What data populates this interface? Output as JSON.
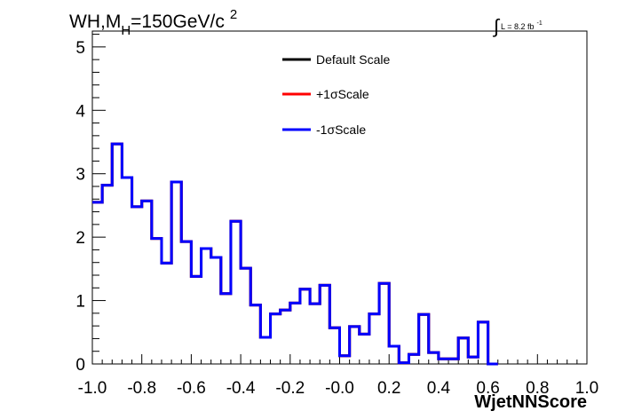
{
  "chart_data": {
    "type": "line",
    "title_parts": [
      "WH,M",
      "H",
      "=150GeV/c",
      "2"
    ],
    "lumi_parts": [
      "∫",
      "L = 8.2 fb",
      "-1"
    ],
    "xlabel": "WjetNNScore",
    "ylabel": "",
    "xlim": [
      -1.0,
      1.0
    ],
    "ylim": [
      0,
      5.25
    ],
    "x_tick_labels": [
      "-1.0",
      "-0.8",
      "-0.6",
      "-0.4",
      "-0.2",
      "-0.0",
      "0.2",
      "0.4",
      "0.6",
      "0.8",
      "1.0"
    ],
    "y_tick_labels": [
      "0",
      "1",
      "2",
      "3",
      "4",
      "5"
    ],
    "x_ticks": [
      -1.0,
      -0.8,
      -0.6,
      -0.4,
      -0.2,
      0.0,
      0.2,
      0.4,
      0.6,
      0.8,
      1.0
    ],
    "y_ticks": [
      0,
      1,
      2,
      3,
      4,
      5
    ],
    "bin_edges_start": -1.0,
    "bin_width": 0.04,
    "grid": false,
    "legend_position": "top-center",
    "series": [
      {
        "name": "Default Scale",
        "color": "#000000",
        "values": [
          2.55,
          2.82,
          3.47,
          2.94,
          2.48,
          2.57,
          1.98,
          1.59,
          2.87,
          1.93,
          1.38,
          1.82,
          1.68,
          1.11,
          2.25,
          1.51,
          0.93,
          0.42,
          0.79,
          0.85,
          0.96,
          1.18,
          0.95,
          1.24,
          0.57,
          0.13,
          0.59,
          0.47,
          0.79,
          1.27,
          0.28,
          0.02,
          0.15,
          0.78,
          0.18,
          0.08,
          0.08,
          0.41,
          0.11,
          0.66,
          0.0
        ]
      },
      {
        "name": "+1σScale",
        "color": "#ff0000",
        "values": [
          2.55,
          2.82,
          3.47,
          2.94,
          2.48,
          2.57,
          1.98,
          1.59,
          2.87,
          1.93,
          1.38,
          1.82,
          1.68,
          1.11,
          2.25,
          1.51,
          0.93,
          0.42,
          0.79,
          0.85,
          0.96,
          1.18,
          0.95,
          1.24,
          0.57,
          0.13,
          0.59,
          0.47,
          0.79,
          1.27,
          0.28,
          0.02,
          0.15,
          0.78,
          0.18,
          0.08,
          0.08,
          0.41,
          0.11,
          0.66,
          0.0
        ]
      },
      {
        "name": "-1σScale",
        "color": "#0000ff",
        "values": [
          2.55,
          2.82,
          3.47,
          2.94,
          2.48,
          2.57,
          1.98,
          1.59,
          2.87,
          1.93,
          1.38,
          1.82,
          1.68,
          1.11,
          2.25,
          1.51,
          0.93,
          0.42,
          0.79,
          0.85,
          0.96,
          1.18,
          0.95,
          1.24,
          0.57,
          0.13,
          0.59,
          0.47,
          0.79,
          1.27,
          0.28,
          0.02,
          0.15,
          0.78,
          0.18,
          0.08,
          0.08,
          0.41,
          0.11,
          0.66,
          0.0
        ]
      }
    ]
  }
}
